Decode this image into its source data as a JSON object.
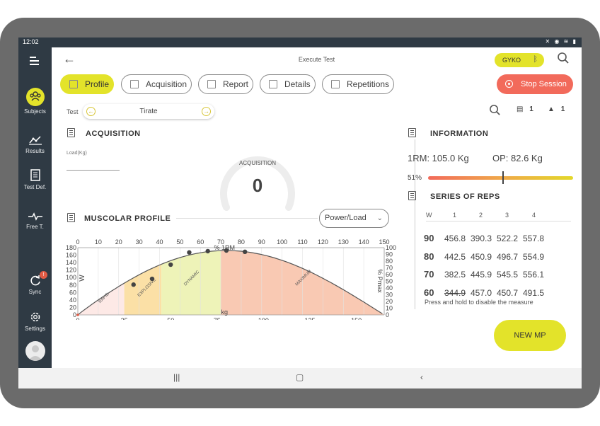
{
  "status": {
    "time": "12:02"
  },
  "sidebar": {
    "items": [
      {
        "label": "Subjects",
        "icon": "subjects-icon"
      },
      {
        "label": "Results",
        "icon": "results-icon"
      },
      {
        "label": "Test Def.",
        "icon": "test-definition-icon"
      },
      {
        "label": "Free T.",
        "icon": "free-training-icon"
      },
      {
        "label": "Sync",
        "icon": "sync-icon",
        "badge": "!"
      },
      {
        "label": "Settings",
        "icon": "settings-icon"
      }
    ]
  },
  "header": {
    "title": "Execute Test",
    "device": "GYKO",
    "tabs": [
      "Profile",
      "Acquisition",
      "Report",
      "Details",
      "Repetitions"
    ],
    "stop_label": "Stop Session"
  },
  "test": {
    "label": "Test",
    "value": "Tirate",
    "count_a": "1",
    "count_b": "1"
  },
  "acquisition": {
    "title": "ACQUISITION",
    "load_label": "Load(Kg)",
    "gauge_label": "ACQUISITION",
    "gauge_value": "0"
  },
  "profile": {
    "title": "MUSCOLAR PROFILE",
    "select_value": "Power/Load"
  },
  "information": {
    "title": "INFORMATION",
    "rm": "1RM: 105.0 Kg",
    "op": "OP: 82.6 Kg",
    "percent": "51%",
    "percent_value": 0.51
  },
  "series": {
    "title": "SERIES OF REPS",
    "headers": [
      "W",
      "1",
      "2",
      "3",
      "4"
    ],
    "rows": [
      {
        "w": "90",
        "values": [
          "456.8",
          "390.3",
          "522.2",
          "557.8"
        ],
        "struck": [
          false,
          false,
          false,
          false
        ]
      },
      {
        "w": "80",
        "values": [
          "442.5",
          "450.9",
          "496.7",
          "554.9"
        ],
        "struck": [
          false,
          false,
          false,
          false
        ]
      },
      {
        "w": "70",
        "values": [
          "382.5",
          "445.9",
          "545.5",
          "556.1"
        ],
        "struck": [
          false,
          false,
          false,
          false
        ]
      },
      {
        "w": "60",
        "values": [
          "344.9",
          "457.0",
          "450.7",
          "491.5"
        ],
        "struck": [
          true,
          false,
          false,
          false
        ]
      }
    ],
    "hint": "Press and hold to disable the measure"
  },
  "new_mp_label": "NEW MP",
  "chart_data": {
    "type": "area",
    "xlabel": "kg",
    "ylabel": "W",
    "top_axis_label": "% 1RM",
    "right_axis_label": "% Pmax",
    "x_ticks": [
      "0",
      "25",
      "50",
      "75",
      "100",
      "125",
      "150"
    ],
    "top_ticks": [
      "0",
      "10",
      "20",
      "30",
      "40",
      "50",
      "60",
      "70",
      "80",
      "90",
      "100",
      "110",
      "120",
      "130",
      "140",
      "150"
    ],
    "y_ticks": [
      "0",
      "20",
      "40",
      "60",
      "80",
      "100",
      "120",
      "140",
      "160",
      "180"
    ],
    "y_ticks_shown": [
      "0",
      "20",
      "40",
      "60",
      "80",
      "100",
      "120",
      "140",
      "160",
      "180"
    ],
    "right_ticks": [
      "0",
      "10",
      "20",
      "30",
      "40",
      "50",
      "60",
      "70",
      "80",
      "90",
      "100"
    ],
    "xlim": [
      0,
      165
    ],
    "zones": [
      {
        "name": "RAPID",
        "from": 0,
        "to": 25,
        "color": "#fde9e6"
      },
      {
        "name": "EXPLOSIVE",
        "from": 25,
        "to": 45,
        "color": "#fbe0a6"
      },
      {
        "name": "DYNAMIC",
        "from": 45,
        "to": 77,
        "color": "#eef3b8"
      },
      {
        "name": "MAXIMUM",
        "from": 77,
        "to": 165,
        "color": "#f9c9b3"
      }
    ],
    "curve_peak_x": 80,
    "curve_max_x": 165,
    "points": [
      {
        "x": 30,
        "y": 0.47
      },
      {
        "x": 40,
        "y": 0.56
      },
      {
        "x": 50,
        "y": 0.78
      },
      {
        "x": 60,
        "y": 0.97
      },
      {
        "x": 70,
        "y": 0.99
      },
      {
        "x": 80,
        "y": 1.0
      },
      {
        "x": 90,
        "y": 0.98
      }
    ]
  }
}
